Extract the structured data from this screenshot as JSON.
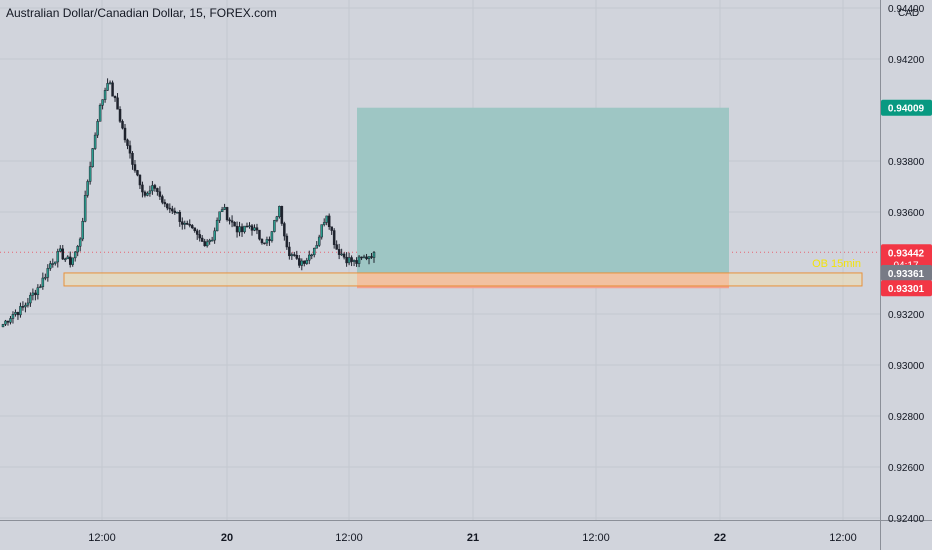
{
  "header": {
    "title": "Australian Dollar/Canadian Dollar, 15, FOREX.com"
  },
  "price_scale": {
    "currency": "CAD",
    "ticks": [
      "0.94400",
      "0.94200",
      "0.93800",
      "0.93600",
      "0.93200",
      "0.93000",
      "0.92800",
      "0.92600",
      "0.92400"
    ]
  },
  "time_scale": {
    "ticks": [
      "12:00",
      "20",
      "12:00",
      "21",
      "12:00",
      "22",
      "12:00"
    ]
  },
  "labels": {
    "target": "0.94009",
    "last": "0.93442",
    "countdown": "04:17",
    "entry": "0.93361",
    "stop": "0.93301",
    "zone": "OB 15min"
  },
  "colors": {
    "background": "#d1d4dc",
    "bull": "#26a69a",
    "bear": "#ef5350",
    "candle": "#1e222d",
    "profit_zone": "#9ec6c4",
    "loss_zone": "#f4a08e",
    "zone_fill": "#f0dcae",
    "zone_border": "#e8913a",
    "zone_text": "#f2e30c",
    "target_label": "#089981",
    "last_label": "#f23645",
    "entry_label": "#787b86"
  },
  "chart_data": {
    "type": "candlestick",
    "symbol": "AUDCAD",
    "timeframe": "15",
    "ylim": [
      0.924,
      0.9443
    ],
    "x_ticks": [
      "12:00",
      "20",
      "12:00",
      "21",
      "12:00",
      "22",
      "12:00"
    ],
    "close_path": [
      0.9316,
      0.932,
      0.9322,
      0.9327,
      0.9332,
      0.934,
      0.9344,
      0.934,
      0.9347,
      0.9375,
      0.9398,
      0.9412,
      0.9401,
      0.9386,
      0.9376,
      0.9366,
      0.937,
      0.9362,
      0.9361,
      0.9355,
      0.9352,
      0.9348,
      0.935,
      0.9362,
      0.9356,
      0.9352,
      0.9355,
      0.935,
      0.9348,
      0.9362,
      0.9345,
      0.934,
      0.9342,
      0.9348,
      0.936,
      0.9346,
      0.9342,
      0.934,
      0.9342,
      0.93442
    ],
    "last_price": 0.93442,
    "position": {
      "type": "long",
      "entry": 0.93361,
      "target": 0.94009,
      "stop": 0.93301
    },
    "order_block": {
      "label": "OB 15min",
      "top": 0.93361,
      "bottom": 0.9331
    }
  }
}
